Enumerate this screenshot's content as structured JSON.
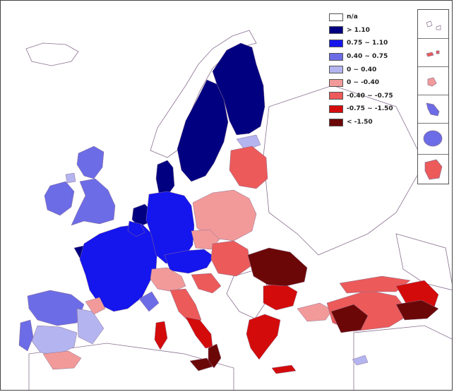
{
  "legend": {
    "items": [
      {
        "label": "n/a",
        "color": "#ffffff"
      },
      {
        "label": "> 1.10",
        "color": "#000080"
      },
      {
        "label": "0.75 ~ 1.10",
        "color": "#1515ee"
      },
      {
        "label": "0.40 ~ 0.75",
        "color": "#6c6ce6"
      },
      {
        "label": "0 ~ 0.40",
        "color": "#b4b4f0"
      },
      {
        "label": "0 ~ -0.40",
        "color": "#f29a9a"
      },
      {
        "label": "-0.40 ~ -0.75",
        "color": "#ec5a5a"
      },
      {
        "label": "-0.75 ~ -1.50",
        "color": "#d40b0b"
      },
      {
        "label": "< -1.50",
        "color": "#6c0707"
      }
    ]
  },
  "map_colors": {
    "sea": "#ffffff",
    "land_no_data": "#ffffff",
    "border": "#8a7090"
  },
  "insets": [
    {
      "name": "canary-islands",
      "class": "n/a"
    },
    {
      "name": "madeira",
      "class": "-0.40 ~ -0.75"
    },
    {
      "name": "azores",
      "class": "0 ~ -0.40"
    },
    {
      "name": "martinique",
      "class": "0.40 ~ 0.75"
    },
    {
      "name": "reunion",
      "class": "0.40 ~ 0.75"
    },
    {
      "name": "french-guiana",
      "class": "-0.40 ~ -0.75"
    }
  ]
}
